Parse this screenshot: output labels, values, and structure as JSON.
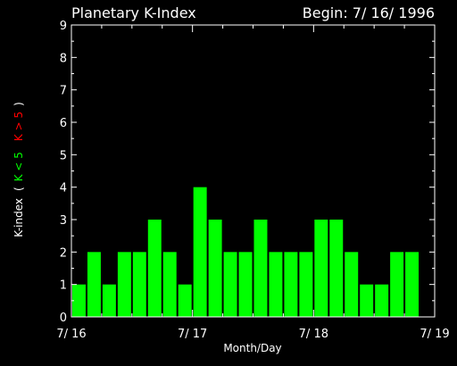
{
  "chart_data": {
    "type": "bar",
    "title": "Planetary K-Index",
    "begin_label": "Begin: 7/ 16/ 1996",
    "xlabel": "Month/Day",
    "ylabel": {
      "prefix": "K-index",
      "open": "(",
      "green_part": "K < 5",
      "red_part": "K > 5",
      "close": ")"
    },
    "ylim": [
      0,
      9
    ],
    "yticks": [
      "0",
      "1",
      "2",
      "3",
      "4",
      "5",
      "6",
      "7",
      "8",
      "9"
    ],
    "x_range_hours": [
      0,
      72
    ],
    "xticks": [
      {
        "label": "7/ 16",
        "hour": 0
      },
      {
        "label": "7/ 17",
        "hour": 24
      },
      {
        "label": "7/ 18",
        "hour": 48
      },
      {
        "label": "7/ 19",
        "hour": 72
      }
    ],
    "interval_hours": 3,
    "values": [
      1,
      2,
      1,
      2,
      2,
      3,
      2,
      1,
      4,
      3,
      2,
      2,
      3,
      2,
      2,
      2,
      3,
      3,
      2,
      1,
      1,
      2,
      2
    ],
    "colors": {
      "background": "#000000",
      "axes": "#ffffff",
      "bar_low": "#00ff00",
      "bar_high": "#ff0000",
      "label_green": "#00ff00",
      "label_red": "#ff0000"
    }
  }
}
